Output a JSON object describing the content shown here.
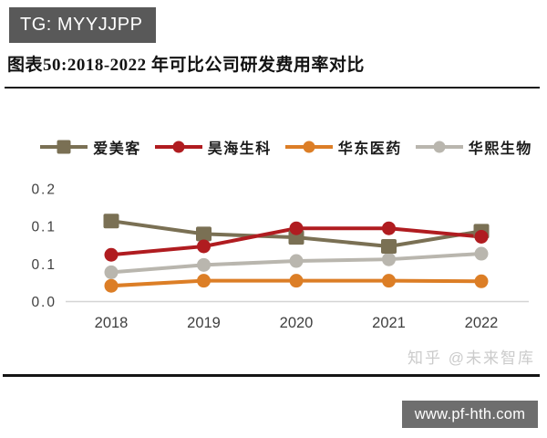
{
  "badge": {
    "label": "TG: MYYJJPP"
  },
  "title": "图表50:2018-2022 年可比公司研发费用率对比",
  "watermark": "知乎 @未来智库",
  "footer": {
    "url": "www.pf-hth.com"
  },
  "chart_data": {
    "type": "line",
    "title": "2018-2022 年可比公司研发费用率对比",
    "categories": [
      "2018",
      "2019",
      "2020",
      "2021",
      "2022"
    ],
    "series": [
      {
        "name": "爱美客",
        "marker": "square",
        "color": "#7A7054",
        "values": [
          0.143,
          0.12,
          0.114,
          0.098,
          0.125
        ]
      },
      {
        "name": "昊海生科",
        "marker": "circle",
        "color": "#B01C20",
        "values": [
          0.083,
          0.098,
          0.13,
          0.13,
          0.115
        ]
      },
      {
        "name": "华东医药",
        "marker": "circle",
        "color": "#DC7E26",
        "values": [
          0.028,
          0.037,
          0.037,
          0.037,
          0.036
        ]
      },
      {
        "name": "华熙生物",
        "marker": "circle",
        "color": "#B9B6AE",
        "values": [
          0.052,
          0.065,
          0.072,
          0.075,
          0.085
        ]
      }
    ],
    "ylim": [
      0,
      0.2
    ],
    "y_tick_labels": [
      "0.2",
      "0.1",
      "0.1",
      "0.0"
    ],
    "xlabel": "",
    "ylabel": "",
    "grid": false,
    "legend_position": "top",
    "axis_color": "#3f3f3f",
    "baseline_color": "#d4d4d4"
  }
}
